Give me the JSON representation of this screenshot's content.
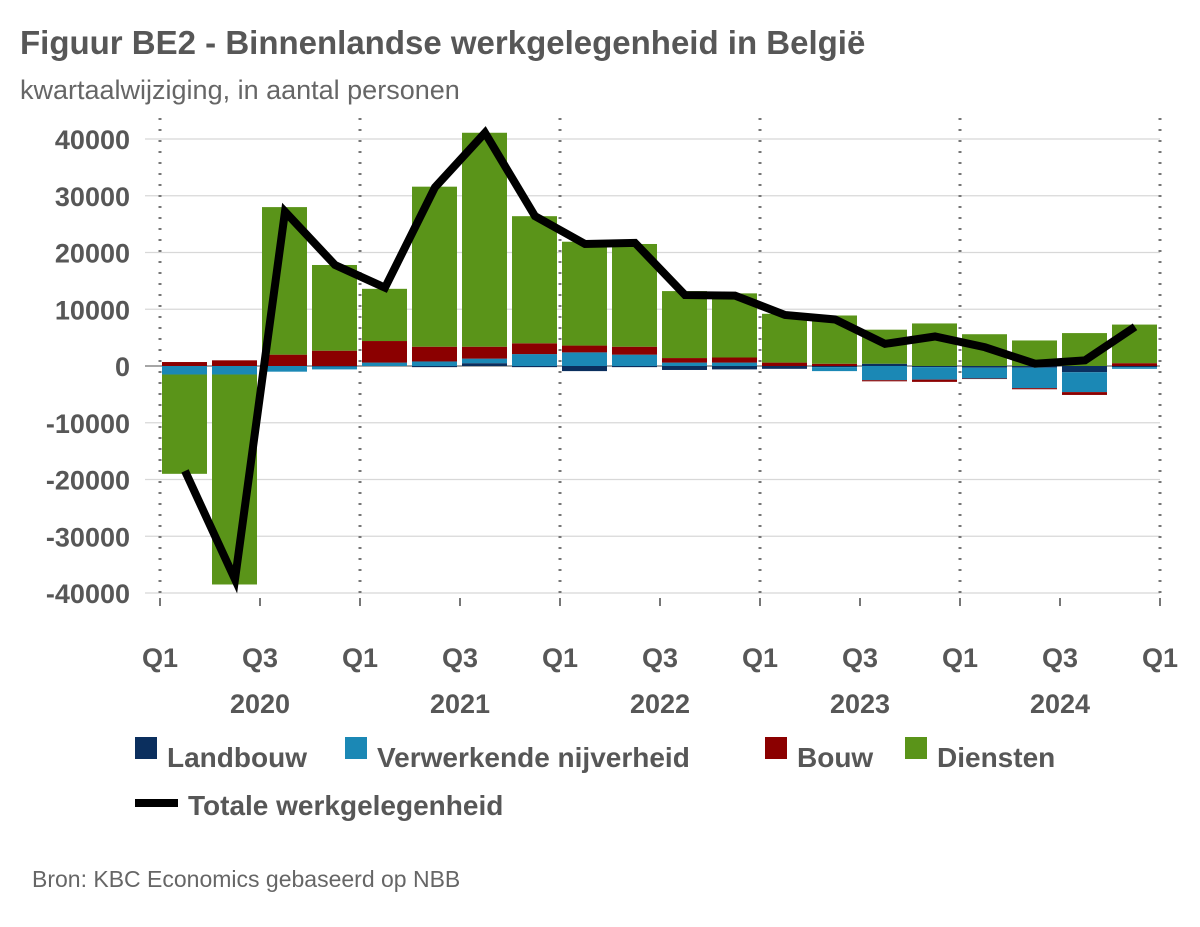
{
  "chart_data": {
    "type": "bar",
    "stacked": true,
    "title": "Figuur BE2 - Binnenlandse werkgelegenheid in België",
    "subtitle": "kwartaalwijziging, in aantal personen",
    "source": "Bron: KBC Economics gebaseerd op NBB",
    "ylim": [
      -40000,
      40000
    ],
    "yticks": [
      40000,
      30000,
      20000,
      10000,
      0,
      -10000,
      -20000,
      -30000,
      -40000
    ],
    "ytick_labels": [
      "40000",
      "30000",
      "20000",
      "10000",
      "0",
      "-10000",
      "-20000",
      "-30000",
      "-40000"
    ],
    "xtick_labels": [
      "Q1",
      "Q3",
      "Q1",
      "Q3",
      "Q1",
      "Q3",
      "Q1",
      "Q3",
      "Q1",
      "Q3",
      "Q1"
    ],
    "year_labels": [
      "2020",
      "2021",
      "2022",
      "2023",
      "2024"
    ],
    "grid": true,
    "legend_position": "bottom",
    "categories": [
      "2020Q1",
      "2020Q2",
      "2020Q3",
      "2020Q4",
      "2021Q1",
      "2021Q2",
      "2021Q3",
      "2021Q4",
      "2022Q1",
      "2022Q2",
      "2022Q3",
      "2022Q4",
      "2023Q1",
      "2023Q2",
      "2023Q3",
      "2023Q4",
      "2024Q1",
      "2024Q2",
      "2024Q3",
      "2024Q4"
    ],
    "series": [
      {
        "name": "Landbouw",
        "color": "#0b2f5e",
        "type": "bar",
        "values": [
          0,
          0,
          0,
          -100,
          0,
          -200,
          500,
          -200,
          -900,
          -200,
          -700,
          -600,
          -500,
          -200,
          400,
          -200,
          -300,
          -300,
          -1100,
          -200
        ]
      },
      {
        "name": "Verwerkende nijverheid",
        "color": "#1b88b5",
        "type": "bar",
        "values": [
          -1500,
          -1500,
          -1000,
          -500,
          600,
          800,
          800,
          2100,
          2400,
          2000,
          600,
          600,
          0,
          -700,
          -2500,
          -2200,
          -1900,
          -3600,
          -3500,
          -300
        ]
      },
      {
        "name": "Bouw",
        "color": "#8b0000",
        "type": "bar",
        "values": [
          700,
          1000,
          2000,
          2700,
          3800,
          2600,
          2100,
          1900,
          1200,
          1400,
          800,
          900,
          600,
          400,
          -200,
          -400,
          -100,
          -200,
          -500,
          500
        ]
      },
      {
        "name": "Diensten",
        "color": "#5a9419",
        "type": "bar",
        "values": [
          -17500,
          -37000,
          26000,
          15100,
          9200,
          28200,
          37700,
          22400,
          18300,
          18100,
          11800,
          11300,
          8600,
          8500,
          6000,
          7500,
          5600,
          4500,
          5800,
          6800
        ]
      },
      {
        "name": "Totale werkgelegenheid",
        "color": "#000000",
        "type": "line",
        "values": [
          -18500,
          -37600,
          27200,
          17800,
          13800,
          31500,
          41100,
          26400,
          21500,
          21700,
          12500,
          12400,
          9000,
          8200,
          3900,
          5200,
          3300,
          400,
          1000,
          6900
        ]
      }
    ]
  }
}
